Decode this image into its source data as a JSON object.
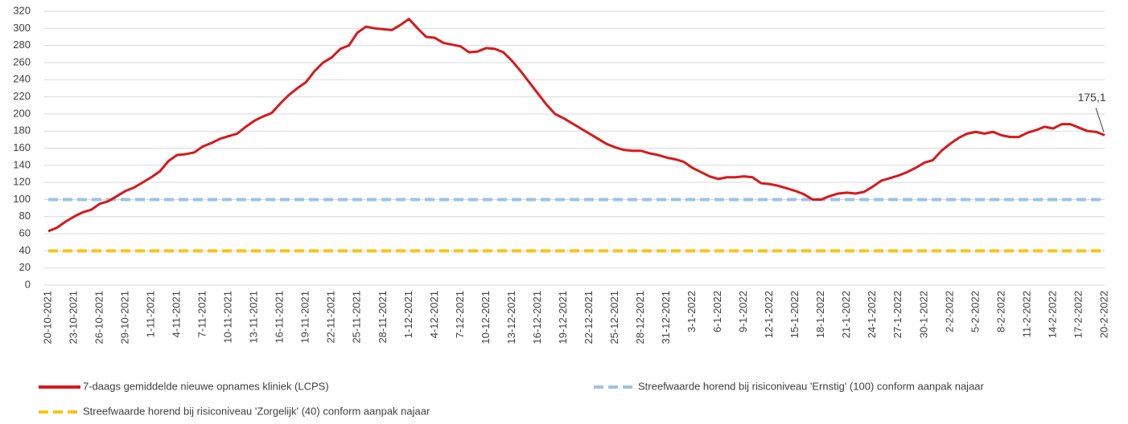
{
  "chart_data": {
    "type": "line",
    "categories": [
      "20-10-2021",
      null,
      null,
      "23-10-2021",
      null,
      null,
      "26-10-2021",
      null,
      null,
      "29-10-2021",
      null,
      null,
      "1-11-2021",
      null,
      null,
      "4-11-2021",
      null,
      null,
      "7-11-2021",
      null,
      null,
      "10-11-2021",
      null,
      null,
      "13-11-2021",
      null,
      null,
      "16-11-2021",
      null,
      null,
      "19-11-2021",
      null,
      null,
      "22-11-2021",
      null,
      null,
      "25-11-2021",
      null,
      null,
      "28-11-2021",
      null,
      null,
      "1-12-2021",
      null,
      null,
      "4-12-2021",
      null,
      null,
      "7-12-2021",
      null,
      null,
      "10-12-2021",
      null,
      null,
      "13-12-2021",
      null,
      null,
      "16-12-2021",
      null,
      null,
      "19-12-2021",
      null,
      null,
      "22-12-2021",
      null,
      null,
      "25-12-2021",
      null,
      null,
      "28-12-2021",
      null,
      null,
      "31-12-2021",
      null,
      null,
      "3-1-2022",
      null,
      null,
      "6-1-2022",
      null,
      null,
      "9-1-2022",
      null,
      null,
      "12-1-2022",
      null,
      null,
      "15-1-2022",
      null,
      null,
      "18-1-2022",
      null,
      null,
      "21-1-2022",
      null,
      null,
      "24-1-2022",
      null,
      null,
      "27-1-2022",
      null,
      null,
      "30-1-2022",
      null,
      null,
      "2-2-2022",
      null,
      null,
      "5-2-2022",
      null,
      null,
      "8-2-2022",
      null,
      null,
      "11-2-2022",
      null,
      null,
      "14-2-2022",
      null,
      null,
      "17-2-2022",
      null,
      null,
      "20-2-2022"
    ],
    "series": [
      {
        "name": "7-daags gemiddelde nieuwe opnames kliniek (LCPS)",
        "color": "#d7191c",
        "values": [
          63,
          67,
          74,
          80,
          85,
          88,
          95,
          98,
          104,
          110,
          114,
          120,
          126,
          133,
          145,
          152,
          153,
          155,
          162,
          166,
          171,
          174,
          177,
          185,
          192,
          197,
          201,
          212,
          222,
          230,
          237,
          250,
          260,
          266,
          276,
          280,
          295,
          302,
          300,
          299,
          298,
          304,
          311,
          300,
          290,
          289,
          283,
          281,
          279,
          272,
          273,
          277,
          276,
          272,
          262,
          250,
          237,
          224,
          211,
          200,
          195,
          189,
          183,
          177,
          171,
          165,
          161,
          158,
          157,
          157,
          154,
          152,
          149,
          147,
          144,
          137,
          132,
          127,
          124,
          126,
          126,
          127,
          126,
          119,
          118,
          116,
          113,
          110,
          106,
          100,
          100,
          104,
          107,
          108,
          107,
          109,
          115,
          122,
          125,
          128,
          132,
          137,
          143,
          146,
          157,
          165,
          172,
          177,
          179,
          177,
          179,
          175,
          173,
          173,
          178,
          181,
          185,
          183,
          188,
          188,
          184,
          180,
          179,
          175.1
        ],
        "value_labels": [
          null,
          null,
          null,
          null,
          null,
          null,
          null,
          null,
          null,
          null,
          null,
          null,
          null,
          null,
          null,
          null,
          null,
          null,
          null,
          null,
          null,
          null,
          null,
          null,
          null,
          null,
          null,
          null,
          null,
          null,
          null,
          null,
          null,
          null,
          null,
          null,
          null,
          null,
          null,
          null,
          null,
          null,
          null,
          null,
          null,
          null,
          null,
          null,
          null,
          null,
          null,
          null,
          null,
          null,
          null,
          null,
          null,
          null,
          null,
          null,
          null,
          null,
          null,
          null,
          null,
          null,
          null,
          null,
          null,
          null,
          null,
          null,
          null,
          null,
          null,
          null,
          null,
          null,
          null,
          null,
          null,
          null,
          null,
          null,
          null,
          null,
          null,
          null,
          null,
          null,
          null,
          null,
          null,
          null,
          null,
          null,
          null,
          null,
          null,
          null,
          null,
          null,
          null,
          null,
          null,
          null,
          null,
          null,
          null,
          null,
          null,
          null,
          null,
          null,
          null,
          null,
          null,
          null,
          null,
          null,
          null,
          null,
          null,
          "175,1"
        ]
      }
    ],
    "reference_lines": [
      {
        "name": "Streefwaarde horend bij risiconiveau 'Ernstig' (100) conform aanpak najaar",
        "value": 100,
        "color": "#9dc3e6"
      },
      {
        "name": "Streefwaarde horend bij risiconiveau 'Zorgelijk' (40) conform aanpak najaar",
        "value": 40,
        "color": "#f5c518"
      }
    ],
    "ylim": [
      0,
      320
    ],
    "yticks": [
      0,
      20,
      40,
      60,
      80,
      100,
      120,
      140,
      160,
      180,
      200,
      220,
      240,
      260,
      280,
      300,
      320
    ],
    "grid": true
  }
}
